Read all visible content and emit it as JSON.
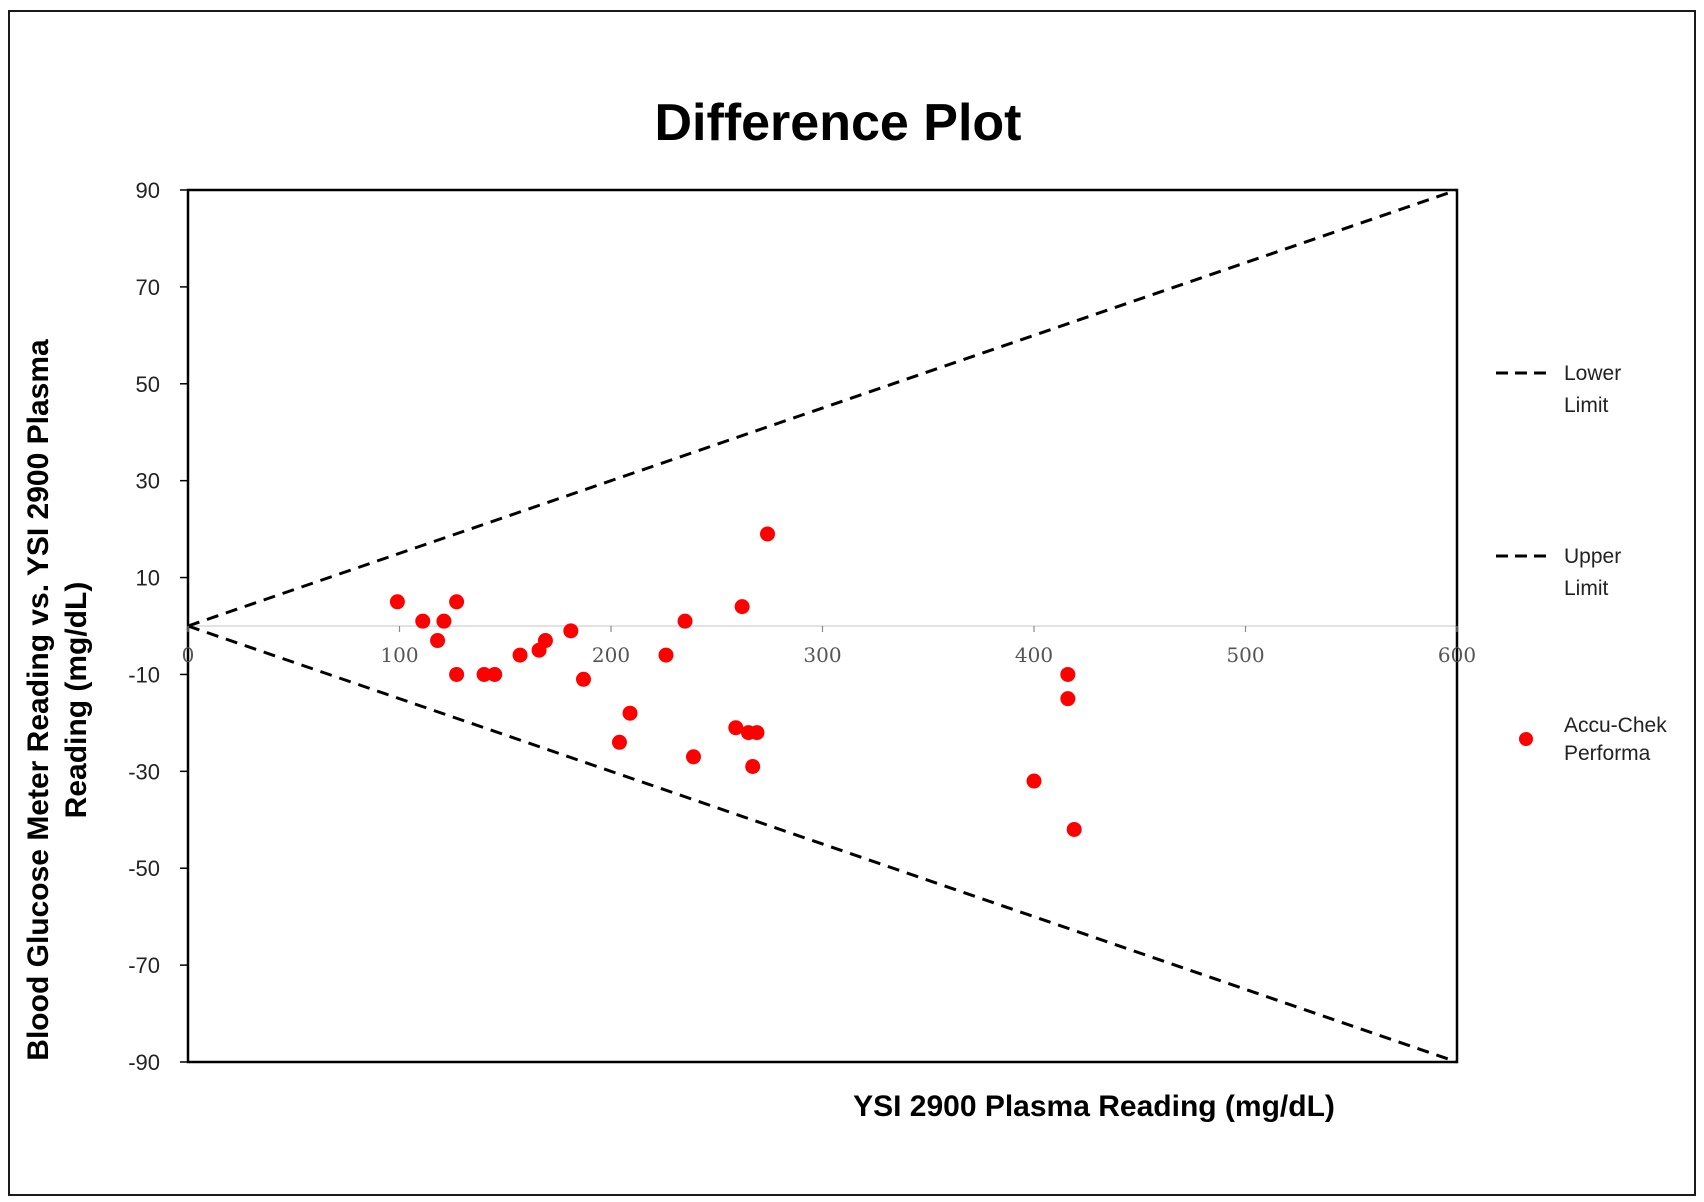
{
  "chart_data": {
    "type": "scatter",
    "title": "Difference  Plot",
    "xlabel": "YSI 2900 Plasma Reading (mg/dL)",
    "ylabel_lines": [
      "Blood Glucose Meter Reading vs.  YSI 2900 Plasma",
      "Reading (mg/dL)"
    ],
    "xlim": [
      0,
      600
    ],
    "ylim": [
      -90,
      90
    ],
    "x_ticks": [
      0,
      100,
      200,
      300,
      400,
      500,
      600
    ],
    "y_ticks": [
      90,
      70,
      50,
      30,
      10,
      -10,
      -30,
      -50,
      -70,
      -90
    ],
    "grid": false,
    "legend_position": "right",
    "legend": [
      {
        "label_lines": [
          "Lower",
          "Limit"
        ],
        "style": "dashed-line"
      },
      {
        "label_lines": [
          "Upper",
          "Limit"
        ],
        "style": "dashed-line"
      },
      {
        "label_lines": [
          "Accu-Chek",
          "Performa"
        ],
        "style": "red-dot"
      }
    ],
    "series": [
      {
        "name": "Lower Limit",
        "kind": "line",
        "points": [
          [
            0,
            0
          ],
          [
            600,
            -90
          ]
        ]
      },
      {
        "name": "Upper Limit",
        "kind": "line",
        "points": [
          [
            0,
            0
          ],
          [
            600,
            90
          ]
        ]
      },
      {
        "name": "Accu-Chek Performa",
        "kind": "scatter",
        "color": "#ff0000",
        "points": [
          [
            99,
            5
          ],
          [
            111,
            1
          ],
          [
            118,
            -3
          ],
          [
            121,
            1
          ],
          [
            127,
            5
          ],
          [
            127,
            -10
          ],
          [
            140,
            -10
          ],
          [
            145,
            -10
          ],
          [
            157,
            -6
          ],
          [
            166,
            -5
          ],
          [
            169,
            -3
          ],
          [
            181,
            -1
          ],
          [
            187,
            -11
          ],
          [
            204,
            -24
          ],
          [
            209,
            -18
          ],
          [
            226,
            -6
          ],
          [
            235,
            1
          ],
          [
            239,
            -27
          ],
          [
            259,
            -21
          ],
          [
            262,
            4
          ],
          [
            265,
            -22
          ],
          [
            267,
            -29
          ],
          [
            269,
            -22
          ],
          [
            274,
            19
          ],
          [
            400,
            -32
          ],
          [
            416,
            -10
          ],
          [
            416,
            -15
          ],
          [
            419,
            -42
          ]
        ]
      }
    ]
  },
  "colors": {
    "points": "#ff0000",
    "axis": "#000000",
    "zero_line": "#d9d9d9"
  }
}
